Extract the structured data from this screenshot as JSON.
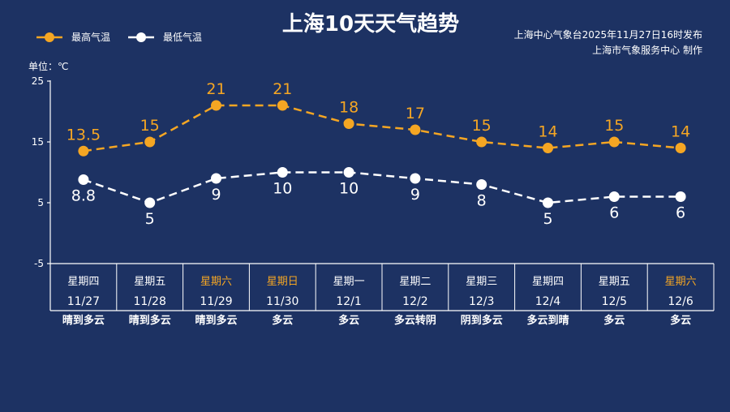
{
  "page": {
    "title": "上海10天天气趋势",
    "credit_line1": "上海中心气象台2025年11月27日16时发布",
    "credit_line2": "上海市气象服务中心  制作",
    "unit_label": "单位：℃"
  },
  "legend": [
    {
      "name": "最高气温",
      "color": "#f5a623"
    },
    {
      "name": "最低气温",
      "color": "#ffffff"
    }
  ],
  "colors": {
    "background": "#1d3263",
    "high": "#f5a623",
    "low": "#ffffff",
    "weekend": "#f5a623",
    "weekday": "#ffffff"
  },
  "chart_data": {
    "type": "line",
    "title": "上海10天天气趋势",
    "ylabel": "单位：℃",
    "ylim": [
      -5,
      25
    ],
    "yticks": [
      -5,
      5,
      15,
      25
    ],
    "grid": false,
    "legend_position": "top-left",
    "categories": [
      "11/27",
      "11/28",
      "11/29",
      "11/30",
      "12/1",
      "12/2",
      "12/3",
      "12/4",
      "12/5",
      "12/6"
    ],
    "weekdays": [
      "星期四",
      "星期五",
      "星期六",
      "星期日",
      "星期一",
      "星期二",
      "星期三",
      "星期四",
      "星期五",
      "星期六"
    ],
    "weekend_flags": [
      false,
      false,
      true,
      true,
      false,
      false,
      false,
      false,
      false,
      true
    ],
    "weather": [
      "晴到多云",
      "晴到多云",
      "晴到多云",
      "多云",
      "多云",
      "多云转阴",
      "阴到多云",
      "多云到晴",
      "多云",
      "多云"
    ],
    "series": [
      {
        "name": "最高气温",
        "values": [
          13.5,
          15,
          21,
          21,
          18,
          17,
          15,
          14,
          15,
          14
        ],
        "labels": [
          "13.5",
          "15",
          "21",
          "21",
          "18",
          "17",
          "15",
          "14",
          "15",
          "14"
        ]
      },
      {
        "name": "最低气温",
        "values": [
          8.8,
          5,
          9,
          10,
          10,
          9,
          8,
          5,
          6,
          6
        ],
        "labels": [
          "8.8",
          "5",
          "9",
          "10",
          "10",
          "9",
          "8",
          "5",
          "6",
          "6"
        ]
      }
    ]
  }
}
